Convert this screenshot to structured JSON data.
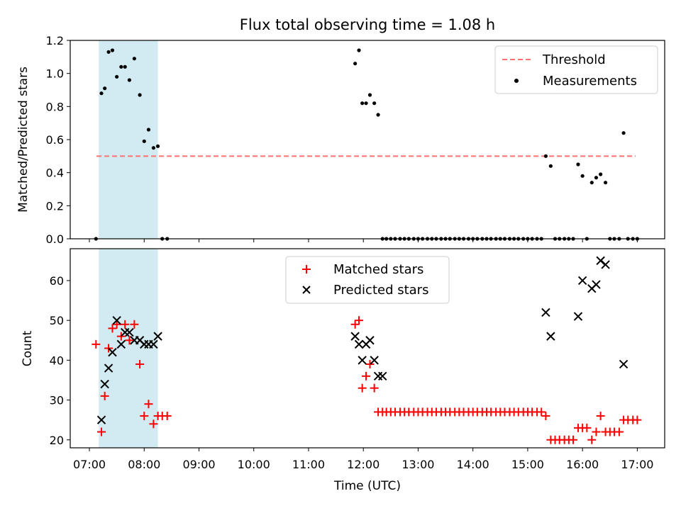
{
  "figure": {
    "title": "Flux total observing time = 1.08 h",
    "xlabel": "Time (UTC)"
  },
  "colors": {
    "threshold": "#ff7070",
    "measurement": "#000000",
    "matched": "#ff0000",
    "predicted": "#000000",
    "shade": "#add8e6"
  },
  "chart_data": [
    {
      "type": "scatter",
      "ylabel": "Matched/Predicted stars",
      "ylim": [
        0,
        1.2
      ],
      "yticks": [
        0.0,
        0.2,
        0.4,
        0.6,
        0.8,
        1.0,
        1.2
      ],
      "ytick_labels": [
        "0.0",
        "0.2",
        "0.4",
        "0.6",
        "0.8",
        "1.0",
        "1.2"
      ],
      "xlim": [
        6.65,
        17.5
      ],
      "xticks": [
        7,
        8,
        9,
        10,
        11,
        12,
        13,
        14,
        15,
        16,
        17
      ],
      "shaded_span": [
        7.17,
        8.25
      ],
      "threshold": {
        "y": 0.5,
        "x_start": 7.13,
        "x_end": 16.97
      },
      "legend": {
        "placement": "top-right",
        "threshold_label": "Threshold",
        "measurements_label": "Measurements"
      },
      "series": [
        {
          "name": "Measurements",
          "x": [
            7.12,
            7.22,
            7.28,
            7.35,
            7.42,
            7.5,
            7.58,
            7.65,
            7.73,
            7.82,
            7.92,
            8.0,
            8.08,
            8.17,
            8.25,
            8.33,
            8.42,
            11.85,
            11.92,
            11.98,
            12.05,
            12.12,
            12.2,
            12.27,
            12.35,
            12.42,
            12.5,
            12.58,
            12.67,
            12.75,
            12.83,
            12.92,
            13.0,
            13.08,
            13.17,
            13.25,
            13.33,
            13.42,
            13.5,
            13.58,
            13.67,
            13.75,
            13.83,
            13.92,
            14.0,
            14.08,
            14.17,
            14.25,
            14.33,
            14.42,
            14.5,
            14.58,
            14.67,
            14.75,
            14.83,
            14.92,
            15.0,
            15.08,
            15.17,
            15.25,
            15.33,
            15.42,
            15.5,
            15.58,
            15.67,
            15.75,
            15.83,
            15.92,
            16.0,
            16.08,
            16.17,
            16.25,
            16.33,
            16.42,
            16.5,
            16.58,
            16.67,
            16.75,
            16.83,
            16.92,
            17.0
          ],
          "y": [
            0.0,
            0.88,
            0.91,
            1.13,
            1.14,
            0.98,
            1.04,
            1.04,
            0.96,
            1.09,
            0.87,
            0.59,
            0.66,
            0.55,
            0.56,
            0.0,
            0.0,
            1.06,
            1.14,
            0.82,
            0.82,
            0.87,
            0.82,
            0.75,
            0.0,
            0.0,
            0.0,
            0.0,
            0.0,
            0.0,
            0.0,
            0.0,
            0.0,
            0.0,
            0.0,
            0.0,
            0.0,
            0.0,
            0.0,
            0.0,
            0.0,
            0.0,
            0.0,
            0.0,
            0.0,
            0.0,
            0.0,
            0.0,
            0.0,
            0.0,
            0.0,
            0.0,
            0.0,
            0.0,
            0.0,
            0.0,
            0.0,
            0.0,
            0.0,
            0.0,
            0.5,
            0.44,
            0.0,
            0.0,
            0.0,
            0.0,
            0.0,
            0.45,
            0.38,
            0.0,
            0.34,
            0.37,
            0.39,
            0.34,
            0.0,
            0.0,
            0.0,
            0.64,
            0.0,
            0.0,
            0.0
          ]
        }
      ]
    },
    {
      "type": "scatter",
      "ylabel": "Count",
      "ylim": [
        18,
        68
      ],
      "yticks": [
        20,
        30,
        40,
        50,
        60
      ],
      "ytick_labels": [
        "20",
        "30",
        "40",
        "50",
        "60"
      ],
      "xlim": [
        6.65,
        17.5
      ],
      "xticks": [
        7,
        8,
        9,
        10,
        11,
        12,
        13,
        14,
        15,
        16,
        17
      ],
      "xtick_labels": [
        "07:00",
        "08:00",
        "09:00",
        "10:00",
        "11:00",
        "12:00",
        "13:00",
        "14:00",
        "15:00",
        "16:00",
        "17:00"
      ],
      "shaded_span": [
        7.17,
        8.25
      ],
      "legend": {
        "placement": "top-center",
        "matched_label": "Matched stars",
        "predicted_label": "Predicted stars"
      },
      "series": [
        {
          "name": "Matched stars",
          "marker": "plus",
          "x": [
            7.12,
            7.22,
            7.28,
            7.35,
            7.42,
            7.5,
            7.58,
            7.65,
            7.73,
            7.82,
            7.92,
            8.0,
            8.08,
            8.17,
            8.25,
            8.33,
            8.42,
            11.85,
            11.92,
            11.98,
            12.05,
            12.12,
            12.2,
            12.27,
            12.35,
            12.42,
            12.5,
            12.58,
            12.67,
            12.75,
            12.83,
            12.92,
            13.0,
            13.08,
            13.17,
            13.25,
            13.33,
            13.42,
            13.5,
            13.58,
            13.67,
            13.75,
            13.83,
            13.92,
            14.0,
            14.08,
            14.17,
            14.25,
            14.33,
            14.42,
            14.5,
            14.58,
            14.67,
            14.75,
            14.83,
            14.92,
            15.0,
            15.08,
            15.17,
            15.25,
            15.33,
            15.42,
            15.5,
            15.58,
            15.67,
            15.75,
            15.83,
            15.92,
            16.0,
            16.08,
            16.17,
            16.25,
            16.33,
            16.42,
            16.5,
            16.58,
            16.67,
            16.75,
            16.83,
            16.92,
            17.0
          ],
          "y": [
            44,
            22,
            31,
            43,
            48,
            49,
            46,
            49,
            45,
            49,
            39,
            26,
            29,
            24,
            26,
            26,
            26,
            49,
            50,
            33,
            36,
            39,
            33,
            27,
            27,
            27,
            27,
            27,
            27,
            27,
            27,
            27,
            27,
            27,
            27,
            27,
            27,
            27,
            27,
            27,
            27,
            27,
            27,
            27,
            27,
            27,
            27,
            27,
            27,
            27,
            27,
            27,
            27,
            27,
            27,
            27,
            27,
            27,
            27,
            27,
            26,
            20,
            20,
            20,
            20,
            20,
            20,
            23,
            23,
            23,
            20,
            22,
            26,
            22,
            22,
            22,
            22,
            25,
            25,
            25,
            25
          ]
        },
        {
          "name": "Predicted stars",
          "marker": "x",
          "x": [
            7.22,
            7.28,
            7.35,
            7.42,
            7.5,
            7.58,
            7.65,
            7.73,
            7.82,
            7.92,
            8.0,
            8.08,
            8.17,
            8.25,
            11.85,
            11.92,
            11.98,
            12.05,
            12.12,
            12.2,
            12.27,
            12.35,
            15.33,
            15.42,
            15.92,
            16.0,
            16.17,
            16.25,
            16.33,
            16.42,
            16.75
          ],
          "y": [
            25,
            34,
            38,
            42,
            50,
            44,
            47,
            47,
            45,
            45,
            44,
            44,
            44,
            46,
            46,
            44,
            40,
            44,
            45,
            40,
            36,
            36,
            52,
            46,
            51,
            60,
            58,
            59,
            65,
            64,
            39
          ]
        }
      ]
    }
  ]
}
